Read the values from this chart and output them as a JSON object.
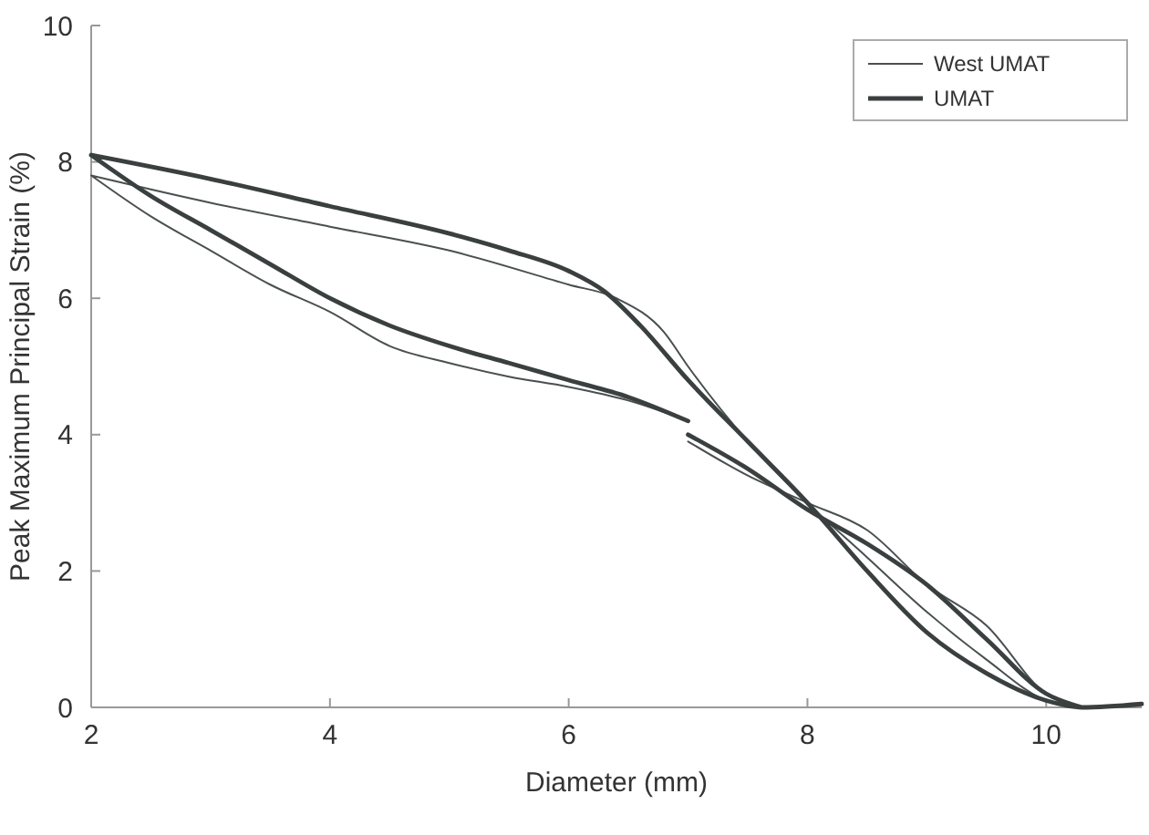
{
  "chart_data": {
    "type": "line",
    "xlabel": "Diameter (mm)",
    "ylabel": "Peak Maximum Principal Strain (%)",
    "xlim": [
      2,
      10.8
    ],
    "ylim": [
      0,
      10
    ],
    "xticks": [
      2,
      4,
      6,
      8,
      10
    ],
    "yticks": [
      0,
      2,
      4,
      6,
      8,
      10
    ],
    "grid": false,
    "legend": "top right",
    "marker": "none",
    "line_style": "solid",
    "series": [
      {
        "name": "West UMAT",
        "color": "#4a4f4f",
        "x": [
          2,
          3,
          4,
          5,
          6,
          6.4,
          6.8,
          7,
          7.5,
          8,
          8.5,
          9,
          9.5,
          10,
          10.3,
          null,
          2,
          2.5,
          3,
          3.5,
          4,
          4.5,
          5,
          5.5,
          6,
          6.5,
          7,
          null,
          7,
          7.5,
          8,
          8.5,
          9,
          9.5,
          10,
          10.3
        ],
        "values": [
          7.8,
          7.4,
          7.05,
          6.7,
          6.2,
          6.0,
          5.5,
          5.0,
          3.9,
          3.0,
          2.2,
          1.4,
          0.7,
          0.1,
          0,
          null,
          7.8,
          7.2,
          6.7,
          6.2,
          5.8,
          5.3,
          5.05,
          4.85,
          4.7,
          4.5,
          4.2,
          null,
          3.9,
          3.4,
          3.0,
          2.6,
          1.8,
          1.2,
          0.2,
          0
        ]
      },
      {
        "name": "UMAT",
        "color": "#3a3f3f",
        "x": [
          2,
          3,
          4,
          5,
          5.5,
          6,
          6.3,
          6.6,
          7,
          7.5,
          8,
          8.5,
          9,
          9.5,
          10,
          10.3,
          10.8,
          null,
          2,
          2.5,
          3,
          3.5,
          4,
          4.5,
          5,
          5.5,
          6,
          6.5,
          7,
          null,
          7,
          7.5,
          8,
          8.5,
          9,
          9.5,
          10,
          10.3
        ],
        "values": [
          8.1,
          7.75,
          7.35,
          6.95,
          6.7,
          6.4,
          6.1,
          5.6,
          4.8,
          3.9,
          3.0,
          2.0,
          1.1,
          0.5,
          0.1,
          0,
          0.05,
          null,
          8.1,
          7.5,
          7.0,
          6.5,
          6.0,
          5.6,
          5.3,
          5.05,
          4.8,
          4.55,
          4.2,
          null,
          4.0,
          3.5,
          2.9,
          2.4,
          1.8,
          1.0,
          0.2,
          0
        ]
      }
    ]
  }
}
